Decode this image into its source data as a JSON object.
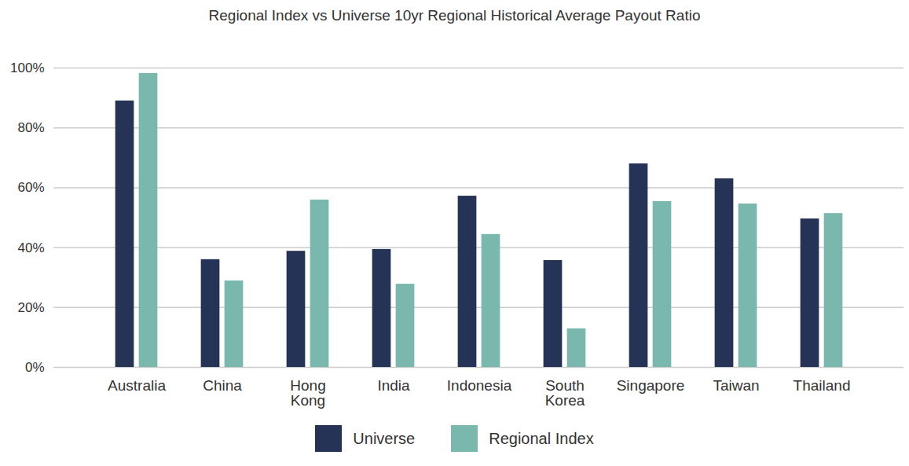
{
  "chart_data": {
    "type": "bar",
    "title": "Regional Index vs Universe 10yr Regional Historical Average Payout Ratio",
    "categories": [
      "Australia",
      "China",
      "Hong Kong",
      "India",
      "Indonesia",
      "South Korea",
      "Singapore",
      "Taiwan",
      "Thailand"
    ],
    "series": [
      {
        "name": "Universe",
        "color": "#253357",
        "values": [
          89.0,
          36.0,
          38.8,
          39.4,
          57.2,
          35.7,
          68.0,
          63.0,
          49.6
        ]
      },
      {
        "name": "Regional Index",
        "color": "#7ab8ad",
        "values": [
          98.2,
          28.9,
          55.9,
          27.8,
          44.4,
          12.9,
          55.4,
          54.6,
          51.4
        ]
      }
    ],
    "ylim": [
      0,
      100
    ],
    "yticks": [
      {
        "value": 0,
        "label": "0%"
      },
      {
        "value": 20,
        "label": "20%"
      },
      {
        "value": 40,
        "label": "40%"
      },
      {
        "value": 60,
        "label": "60%"
      },
      {
        "value": 80,
        "label": "80%"
      },
      {
        "value": 100,
        "label": "100%"
      }
    ],
    "grid": true,
    "legend": "bottom"
  }
}
